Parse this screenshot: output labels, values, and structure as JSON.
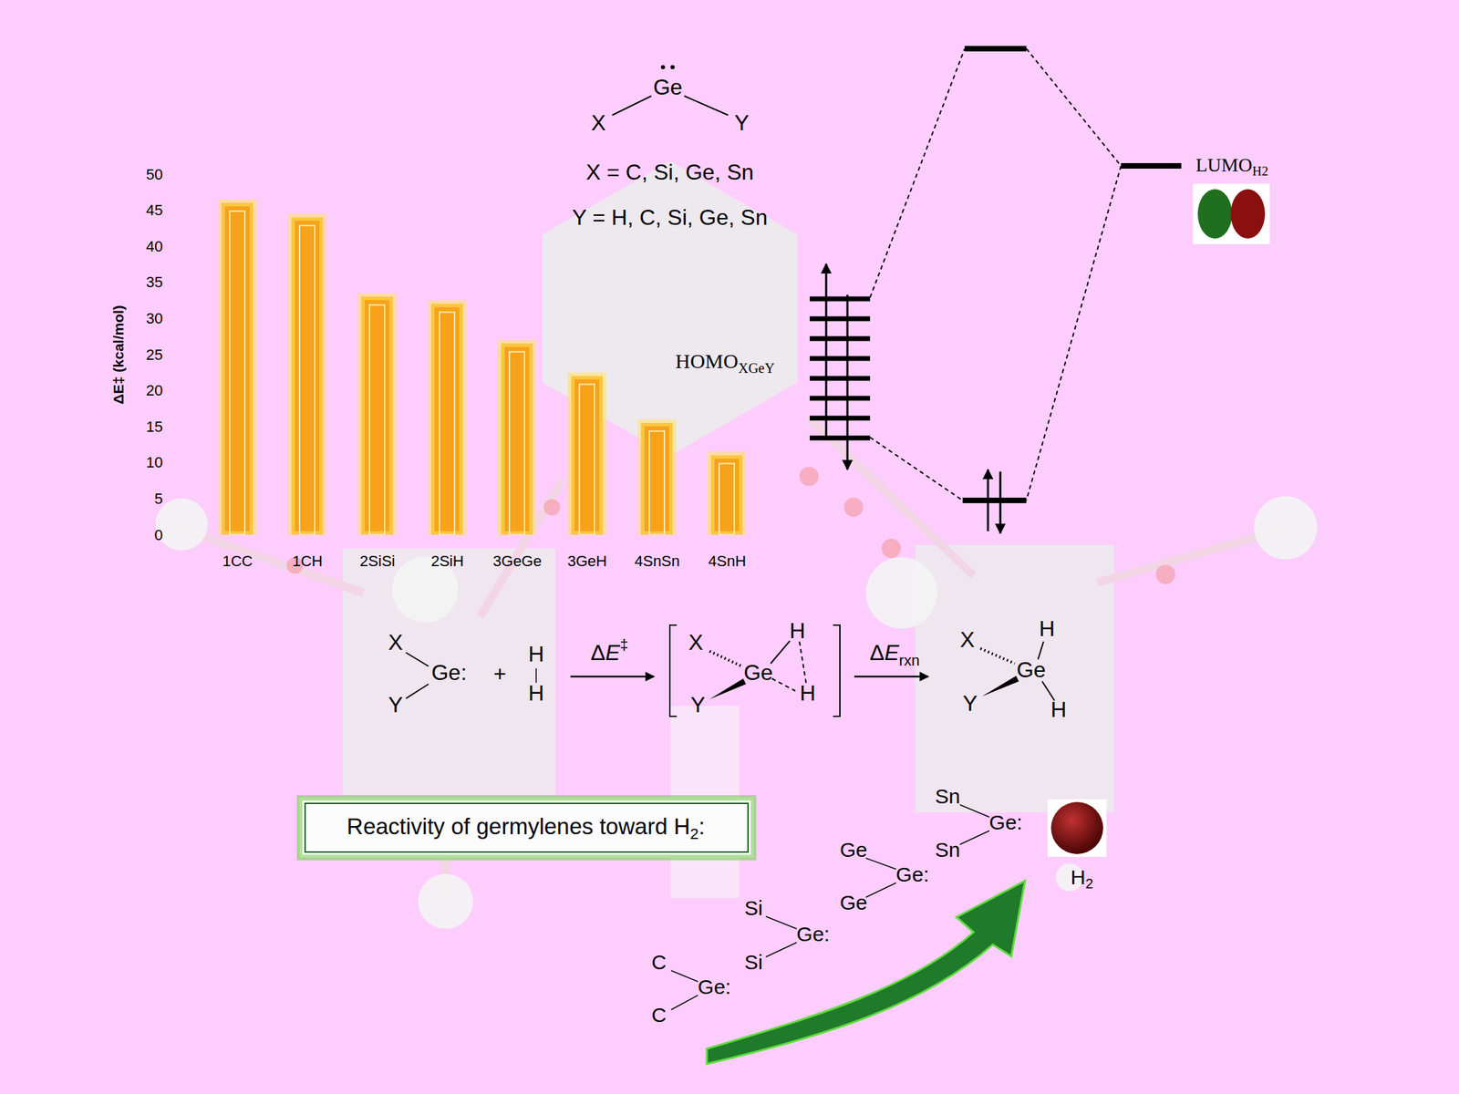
{
  "chart_data": {
    "type": "bar",
    "categories": [
      "1CC",
      "1CH",
      "2SiSi",
      "2SiH",
      "3GeGe",
      "3GeH",
      "4SnSn",
      "4SnH"
    ],
    "values": [
      46,
      44,
      33,
      32,
      26.5,
      22,
      15.5,
      11
    ],
    "color": "#f7a21b",
    "ylabel": "ΔE‡ (kcal/mol)",
    "ylim": [
      0,
      50
    ],
    "yticks": [
      0,
      5,
      10,
      15,
      20,
      25,
      30,
      35,
      40,
      45,
      50
    ],
    "grid": false
  },
  "diagram": {
    "germylene_general": {
      "left": "X",
      "center": "Ge",
      "right": "Y"
    },
    "definitions": [
      "X = C, Si, Ge, Sn",
      "Y = H, C, Si, Ge, Sn"
    ],
    "mo_diagram": {
      "homo": {
        "text": "HOMO",
        "sub": "XGeY"
      },
      "lumo": {
        "text": "LUMO",
        "sub": "H2"
      }
    },
    "scheme": {
      "reactant": {
        "x": "X",
        "ge": "Ge:",
        "y": "Y"
      },
      "plus": "+",
      "h2": [
        "H",
        "H"
      ],
      "step1": {
        "text": "ΔE",
        "sup": "‡"
      },
      "ts": {
        "x": "X",
        "ge": "Ge",
        "y": "Y",
        "h": [
          "H",
          "H"
        ]
      },
      "step2": {
        "text": "ΔE",
        "sub": "rxn"
      },
      "product": {
        "x": "X",
        "ge": "Ge",
        "y": "Y",
        "h": [
          "H",
          "H"
        ]
      }
    },
    "reactivity": {
      "title": {
        "text": "Reactivity of germylenes toward H",
        "sub": "2",
        "after": ":"
      },
      "germylenes": [
        {
          "top": "C",
          "center": "Ge:",
          "bottom": "C"
        },
        {
          "top": "Si",
          "center": "Ge:",
          "bottom": "Si"
        },
        {
          "top": "Ge",
          "center": "Ge:",
          "bottom": "Ge"
        },
        {
          "top": "Sn",
          "center": "Ge:",
          "bottom": "Sn"
        }
      ],
      "reagent": {
        "text": "H",
        "sub": "2"
      }
    }
  }
}
